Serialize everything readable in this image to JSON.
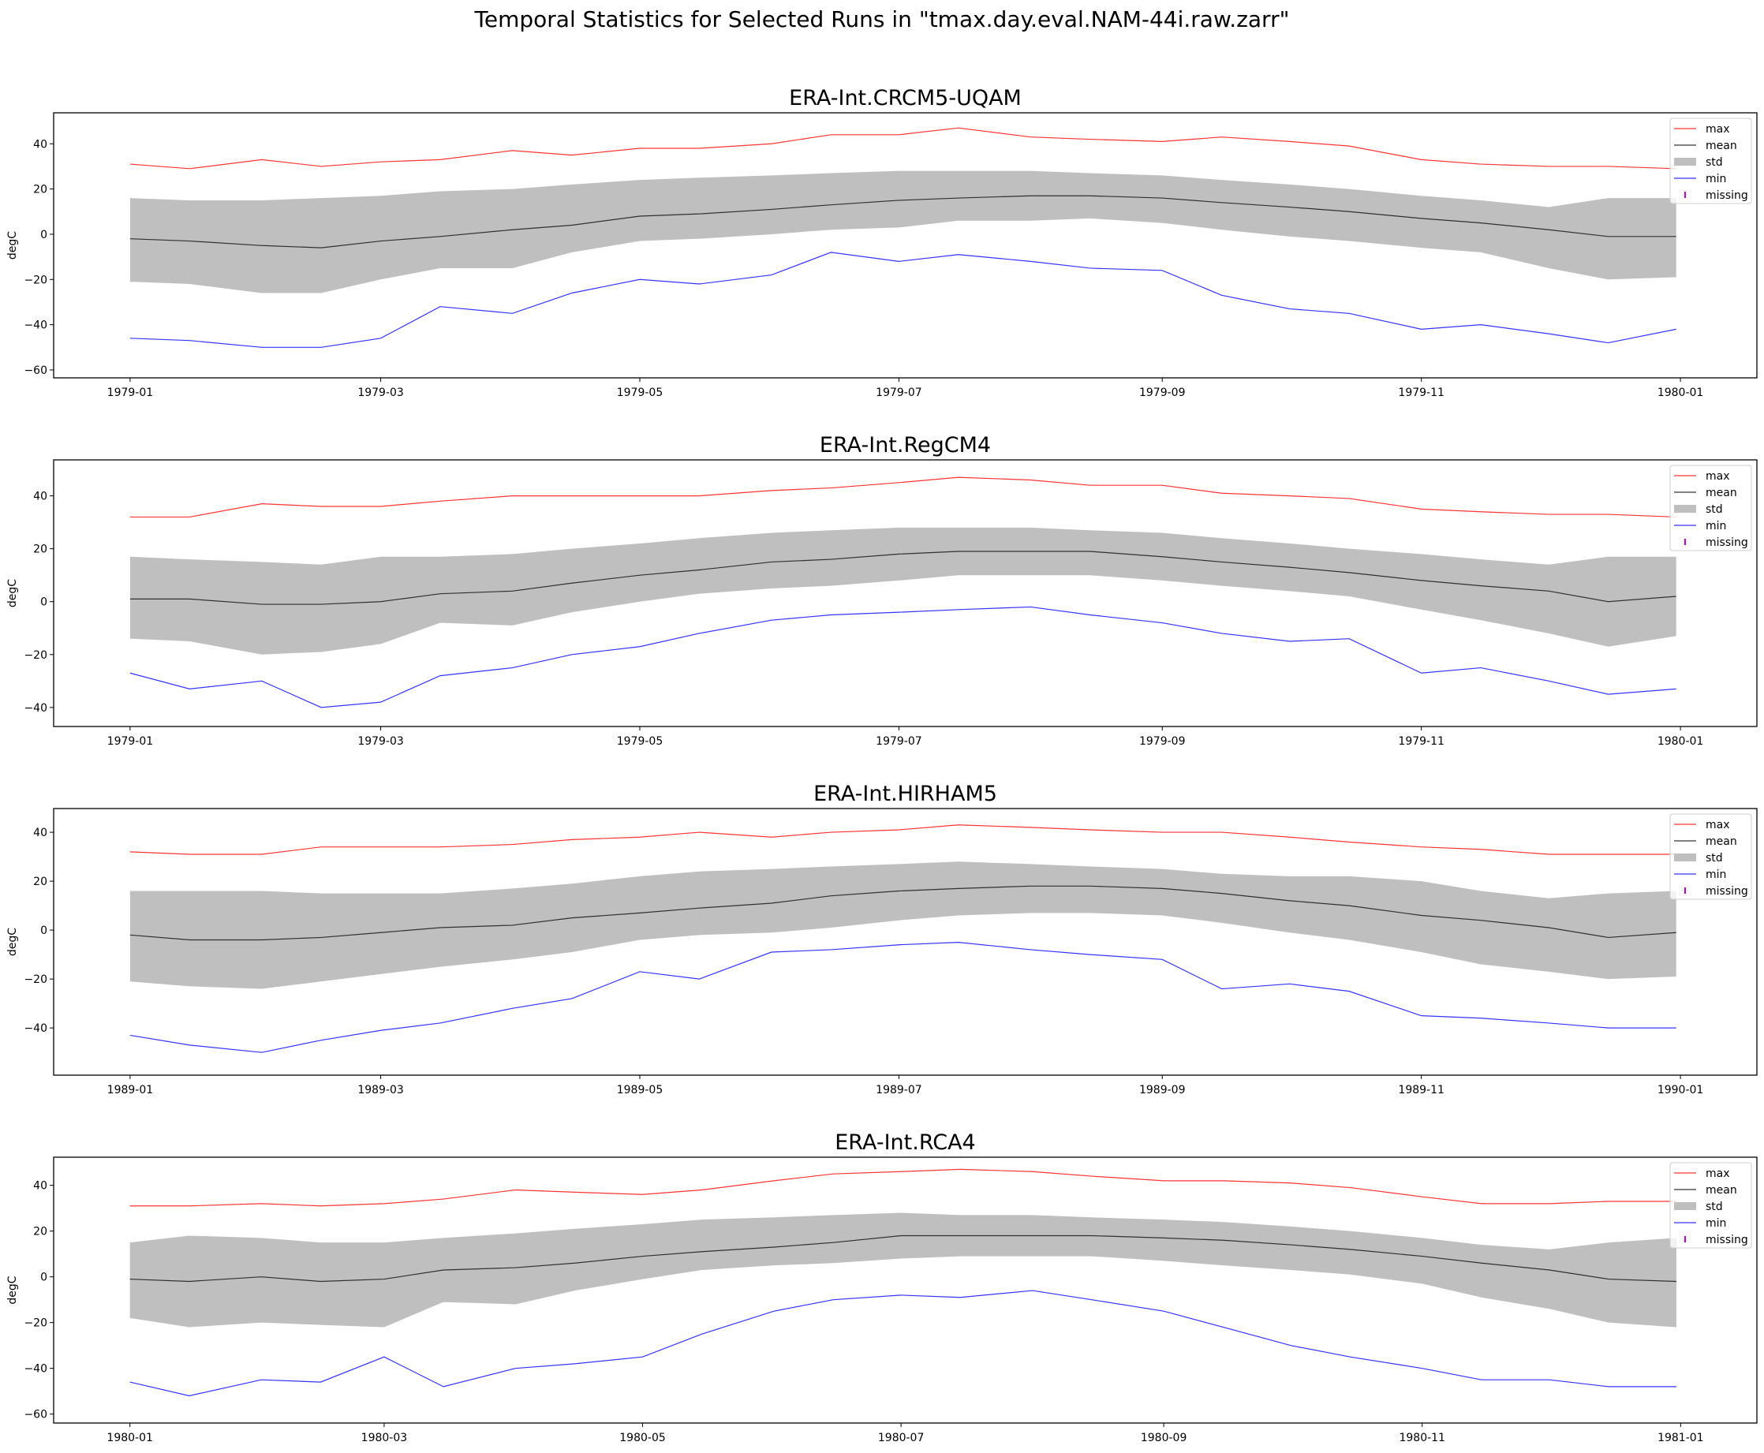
{
  "figure_title": "Temporal Statistics for Selected Runs in \"tmax.day.eval.NAM-44i.raw.zarr\"",
  "colors": {
    "max": "#ff0000",
    "mean": "#000000",
    "std": "#bfbfbf",
    "min": "#0000ff",
    "missing": "#cc00cc"
  },
  "chart_data": [
    {
      "type": "line",
      "title": "ERA-Int.CRCM5-UQAM",
      "ylabel": "degC",
      "ylim": [
        -63.5,
        53.7
      ],
      "yticks": [
        -60,
        -40,
        -20,
        0,
        20,
        40
      ],
      "xlim": [
        "1978-12-14",
        "1980-01-19"
      ],
      "xticks": [
        "1979-01",
        "1979-03",
        "1979-05",
        "1979-07",
        "1979-09",
        "1979-11",
        "1980-01"
      ],
      "legend": {
        "placement": "upper right",
        "entries": [
          "max",
          "mean",
          "std",
          "min",
          "missing"
        ]
      },
      "grid": false,
      "x": [
        "1979-01-01",
        "1979-01-15",
        "1979-02-01",
        "1979-02-15",
        "1979-03-01",
        "1979-03-15",
        "1979-04-01",
        "1979-04-15",
        "1979-05-01",
        "1979-05-15",
        "1979-06-01",
        "1979-06-15",
        "1979-07-01",
        "1979-07-15",
        "1979-08-01",
        "1979-08-15",
        "1979-09-01",
        "1979-09-15",
        "1979-10-01",
        "1979-10-15",
        "1979-11-01",
        "1979-11-15",
        "1979-12-01",
        "1979-12-15",
        "1979-12-31"
      ],
      "max": [
        31,
        29,
        33,
        30,
        32,
        33,
        37,
        35,
        38,
        38,
        40,
        44,
        44,
        47,
        43,
        42,
        41,
        43,
        41,
        39,
        33,
        31,
        30,
        30,
        29
      ],
      "mean": [
        -2,
        -3,
        -5,
        -6,
        -3,
        -1,
        2,
        4,
        8,
        9,
        11,
        13,
        15,
        16,
        17,
        17,
        16,
        14,
        12,
        10,
        7,
        5,
        2,
        -1,
        -1
      ],
      "std_upper": [
        16,
        15,
        15,
        16,
        17,
        19,
        20,
        22,
        24,
        25,
        26,
        27,
        28,
        28,
        28,
        27,
        26,
        24,
        22,
        20,
        17,
        15,
        12,
        16,
        16
      ],
      "std_lower": [
        -21,
        -22,
        -26,
        -26,
        -20,
        -15,
        -15,
        -8,
        -3,
        -2,
        0,
        2,
        3,
        6,
        6,
        7,
        5,
        2,
        -1,
        -3,
        -6,
        -8,
        -15,
        -20,
        -19
      ],
      "min": [
        -46,
        -47,
        -50,
        -50,
        -46,
        -32,
        -35,
        -26,
        -20,
        -22,
        -18,
        -8,
        -12,
        -9,
        -12,
        -15,
        -16,
        -27,
        -33,
        -35,
        -42,
        -40,
        -44,
        -48,
        -42
      ]
    },
    {
      "type": "line",
      "title": "ERA-Int.RegCM4",
      "ylabel": "degC",
      "ylim": [
        -47.2,
        53.6
      ],
      "yticks": [
        -40,
        -20,
        0,
        20,
        40
      ],
      "xlim": [
        "1978-12-14",
        "1980-01-19"
      ],
      "xticks": [
        "1979-01",
        "1979-03",
        "1979-05",
        "1979-07",
        "1979-09",
        "1979-11",
        "1980-01"
      ],
      "legend": {
        "placement": "upper right",
        "entries": [
          "max",
          "mean",
          "std",
          "min",
          "missing"
        ]
      },
      "grid": false,
      "x": [
        "1979-01-01",
        "1979-01-15",
        "1979-02-01",
        "1979-02-15",
        "1979-03-01",
        "1979-03-15",
        "1979-04-01",
        "1979-04-15",
        "1979-05-01",
        "1979-05-15",
        "1979-06-01",
        "1979-06-15",
        "1979-07-01",
        "1979-07-15",
        "1979-08-01",
        "1979-08-15",
        "1979-09-01",
        "1979-09-15",
        "1979-10-01",
        "1979-10-15",
        "1979-11-01",
        "1979-11-15",
        "1979-12-01",
        "1979-12-15",
        "1979-12-31"
      ],
      "max": [
        32,
        32,
        37,
        36,
        36,
        38,
        40,
        40,
        40,
        40,
        42,
        43,
        45,
        47,
        46,
        44,
        44,
        41,
        40,
        39,
        35,
        34,
        33,
        33,
        32
      ],
      "mean": [
        1,
        1,
        -1,
        -1,
        0,
        3,
        4,
        7,
        10,
        12,
        15,
        16,
        18,
        19,
        19,
        19,
        17,
        15,
        13,
        11,
        8,
        6,
        4,
        0,
        2
      ],
      "std_upper": [
        17,
        16,
        15,
        14,
        17,
        17,
        18,
        20,
        22,
        24,
        26,
        27,
        28,
        28,
        28,
        27,
        26,
        24,
        22,
        20,
        18,
        16,
        14,
        17,
        17
      ],
      "std_lower": [
        -14,
        -15,
        -20,
        -19,
        -16,
        -8,
        -9,
        -4,
        0,
        3,
        5,
        6,
        8,
        10,
        10,
        10,
        8,
        6,
        4,
        2,
        -3,
        -7,
        -12,
        -17,
        -13
      ],
      "min": [
        -27,
        -33,
        -30,
        -40,
        -38,
        -28,
        -25,
        -20,
        -17,
        -12,
        -7,
        -5,
        -4,
        -3,
        -2,
        -5,
        -8,
        -12,
        -15,
        -14,
        -27,
        -25,
        -30,
        -35,
        -33
      ]
    },
    {
      "type": "line",
      "title": "ERA-Int.HIRHAM5",
      "ylabel": "degC",
      "ylim": [
        -59.3,
        49.7
      ],
      "yticks": [
        -40,
        -20,
        0,
        20,
        40
      ],
      "xlim": [
        "1988-12-14",
        "1990-01-19"
      ],
      "xticks": [
        "1989-01",
        "1989-03",
        "1989-05",
        "1989-07",
        "1989-09",
        "1989-11",
        "1990-01"
      ],
      "legend": {
        "placement": "upper right",
        "entries": [
          "max",
          "mean",
          "std",
          "min",
          "missing"
        ]
      },
      "grid": false,
      "x": [
        "1989-01-01",
        "1989-01-15",
        "1989-02-01",
        "1989-02-15",
        "1989-03-01",
        "1989-03-15",
        "1989-04-01",
        "1989-04-15",
        "1989-05-01",
        "1989-05-15",
        "1989-06-01",
        "1989-06-15",
        "1989-07-01",
        "1989-07-15",
        "1989-08-01",
        "1989-08-15",
        "1989-09-01",
        "1989-09-15",
        "1989-10-01",
        "1989-10-15",
        "1989-11-01",
        "1989-11-15",
        "1989-12-01",
        "1989-12-15",
        "1989-12-31"
      ],
      "max": [
        32,
        31,
        31,
        34,
        34,
        34,
        35,
        37,
        38,
        40,
        38,
        40,
        41,
        43,
        42,
        41,
        40,
        40,
        38,
        36,
        34,
        33,
        31,
        31,
        31
      ],
      "mean": [
        -2,
        -4,
        -4,
        -3,
        -1,
        1,
        2,
        5,
        7,
        9,
        11,
        14,
        16,
        17,
        18,
        18,
        17,
        15,
        12,
        10,
        6,
        4,
        1,
        -3,
        -1
      ],
      "std_upper": [
        16,
        16,
        16,
        15,
        15,
        15,
        17,
        19,
        22,
        24,
        25,
        26,
        27,
        28,
        27,
        26,
        25,
        23,
        22,
        22,
        20,
        16,
        13,
        15,
        16
      ],
      "std_lower": [
        -21,
        -23,
        -24,
        -21,
        -18,
        -15,
        -12,
        -9,
        -4,
        -2,
        -1,
        1,
        4,
        6,
        7,
        7,
        6,
        3,
        -1,
        -4,
        -9,
        -14,
        -17,
        -20,
        -19
      ],
      "min": [
        -43,
        -47,
        -50,
        -45,
        -41,
        -38,
        -32,
        -28,
        -17,
        -20,
        -9,
        -8,
        -6,
        -5,
        -8,
        -10,
        -12,
        -24,
        -22,
        -25,
        -35,
        -36,
        -38,
        -40,
        -40
      ]
    },
    {
      "type": "line",
      "title": "ERA-Int.RCA4",
      "ylabel": "degC",
      "ylim": [
        -63.9,
        52.3
      ],
      "yticks": [
        -60,
        -40,
        -20,
        0,
        20,
        40
      ],
      "xlim": [
        "1979-12-14",
        "1981-01-19"
      ],
      "xticks": [
        "1980-01",
        "1980-03",
        "1980-05",
        "1980-07",
        "1980-09",
        "1980-11",
        "1981-01"
      ],
      "legend": {
        "placement": "upper right",
        "entries": [
          "max",
          "mean",
          "std",
          "min",
          "missing"
        ]
      },
      "grid": false,
      "x": [
        "1980-01-01",
        "1980-01-15",
        "1980-02-01",
        "1980-02-15",
        "1980-03-01",
        "1980-03-15",
        "1980-04-01",
        "1980-04-15",
        "1980-05-01",
        "1980-05-15",
        "1980-06-01",
        "1980-06-15",
        "1980-07-01",
        "1980-07-15",
        "1980-08-01",
        "1980-08-15",
        "1980-09-01",
        "1980-09-15",
        "1980-10-01",
        "1980-10-15",
        "1980-11-01",
        "1980-11-15",
        "1980-12-01",
        "1980-12-15",
        "1980-12-31"
      ],
      "max": [
        31,
        31,
        32,
        31,
        32,
        34,
        38,
        37,
        36,
        38,
        42,
        45,
        46,
        47,
        46,
        44,
        42,
        42,
        41,
        39,
        35,
        32,
        32,
        33,
        33
      ],
      "mean": [
        -1,
        -2,
        0,
        -2,
        -1,
        3,
        4,
        6,
        9,
        11,
        13,
        15,
        18,
        18,
        18,
        18,
        17,
        16,
        14,
        12,
        9,
        6,
        3,
        -1,
        -2
      ],
      "std_upper": [
        15,
        18,
        17,
        15,
        15,
        17,
        19,
        21,
        23,
        25,
        26,
        27,
        28,
        27,
        27,
        26,
        25,
        24,
        22,
        20,
        17,
        14,
        12,
        15,
        17
      ],
      "std_lower": [
        -18,
        -22,
        -20,
        -21,
        -22,
        -11,
        -12,
        -6,
        -1,
        3,
        5,
        6,
        8,
        9,
        9,
        9,
        7,
        5,
        3,
        1,
        -3,
        -9,
        -14,
        -20,
        -22
      ],
      "min": [
        -46,
        -52,
        -45,
        -46,
        -35,
        -48,
        -40,
        -38,
        -35,
        -25,
        -15,
        -10,
        -8,
        -9,
        -6,
        -10,
        -15,
        -22,
        -30,
        -35,
        -40,
        -45,
        -45,
        -48,
        -48
      ]
    }
  ]
}
